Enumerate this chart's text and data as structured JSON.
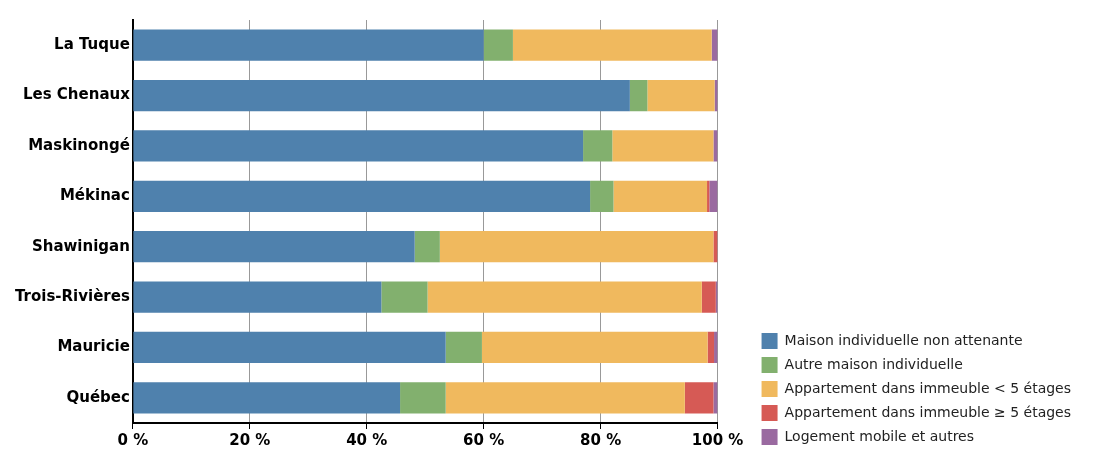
{
  "chart_data": {
    "type": "bar",
    "orientation": "horizontal",
    "stacked": true,
    "categories": [
      "La Tuque",
      "Les Chenaux",
      "Maskinongé",
      "Mékinac",
      "Shawinigan",
      "Trois-Rivières",
      "Mauricie",
      "Québec"
    ],
    "series": [
      {
        "name": "Maison individuelle non attenante",
        "color": "#4f81ad",
        "values": [
          60,
          85,
          77,
          78.2,
          48.2,
          42.5,
          53.5,
          45.7
        ]
      },
      {
        "name": "Autre maison individuelle",
        "color": "#82b06e",
        "values": [
          5,
          3,
          5,
          4,
          4.3,
          7.9,
          6.2,
          7.8
        ]
      },
      {
        "name": "Appartement dans immeuble < 5 étages",
        "color": "#f0b95e",
        "values": [
          34,
          11.5,
          17.3,
          16,
          46.8,
          46.9,
          38.6,
          40.9
        ]
      },
      {
        "name": "Appartement dans immeuble ≥ 5 étages",
        "color": "#d65a55",
        "values": [
          0,
          0,
          0,
          0.4,
          0.7,
          2.4,
          1.1,
          4.9
        ]
      },
      {
        "name": "Logement mobile et autres",
        "color": "#9a6aa0",
        "values": [
          1,
          0.5,
          0.7,
          1.4,
          null,
          0.3,
          0.6,
          0.7
        ]
      }
    ],
    "xlim": [
      0,
      100
    ],
    "xticks": [
      {
        "value": 0,
        "label": "0 %"
      },
      {
        "value": 20,
        "label": "20 %"
      },
      {
        "value": 40,
        "label": "40 %"
      },
      {
        "value": 60,
        "label": "60 %"
      },
      {
        "value": 80,
        "label": "80 %"
      },
      {
        "value": 100,
        "label": "100 %"
      }
    ],
    "grid": "x",
    "legend": "bottom right"
  }
}
